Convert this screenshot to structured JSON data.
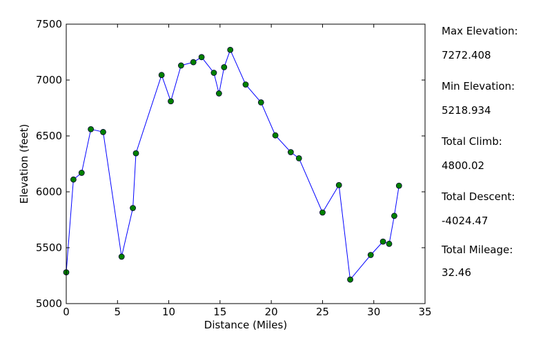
{
  "chart_data": {
    "type": "line",
    "title": "",
    "xlabel": "Distance (Miles)",
    "ylabel": "Elevation (feet)",
    "xlim": [
      0,
      35
    ],
    "ylim": [
      5000,
      7500
    ],
    "xticks": [
      "0",
      "5",
      "10",
      "15",
      "20",
      "25",
      "30",
      "35"
    ],
    "yticks": [
      "5000",
      "5500",
      "6000",
      "6500",
      "7000",
      "7500"
    ],
    "grid": false,
    "line_color": "#0000ff",
    "marker_color": "#008000",
    "series": [
      {
        "points": [
          [
            0.0,
            5280
          ],
          [
            0.7,
            6110
          ],
          [
            1.5,
            6170
          ],
          [
            2.4,
            6560
          ],
          [
            3.6,
            6535
          ],
          [
            5.4,
            5420
          ],
          [
            6.5,
            5855
          ],
          [
            6.8,
            6345
          ],
          [
            9.3,
            7045
          ],
          [
            10.2,
            6810
          ],
          [
            11.2,
            7130
          ],
          [
            12.4,
            7160
          ],
          [
            13.2,
            7205
          ],
          [
            14.4,
            7065
          ],
          [
            14.9,
            6880
          ],
          [
            15.4,
            7115
          ],
          [
            16.0,
            7270
          ],
          [
            17.5,
            6960
          ],
          [
            19.0,
            6800
          ],
          [
            20.4,
            6505
          ],
          [
            21.9,
            6355
          ],
          [
            22.7,
            6300
          ],
          [
            25.0,
            5815
          ],
          [
            26.6,
            6060
          ],
          [
            27.7,
            5215
          ],
          [
            29.7,
            5435
          ],
          [
            30.9,
            5555
          ],
          [
            31.5,
            5535
          ],
          [
            32.0,
            5785
          ],
          [
            32.46,
            6055
          ]
        ]
      }
    ]
  },
  "stats": [
    {
      "label": "Max Elevation:",
      "value": "7272.408"
    },
    {
      "label": "Min Elevation:",
      "value": "5218.934"
    },
    {
      "label": "Total Climb:",
      "value": "4800.02"
    },
    {
      "label": "Total Descent:",
      "value": "-4024.47"
    },
    {
      "label": "Total Mileage:",
      "value": "32.46"
    }
  ]
}
